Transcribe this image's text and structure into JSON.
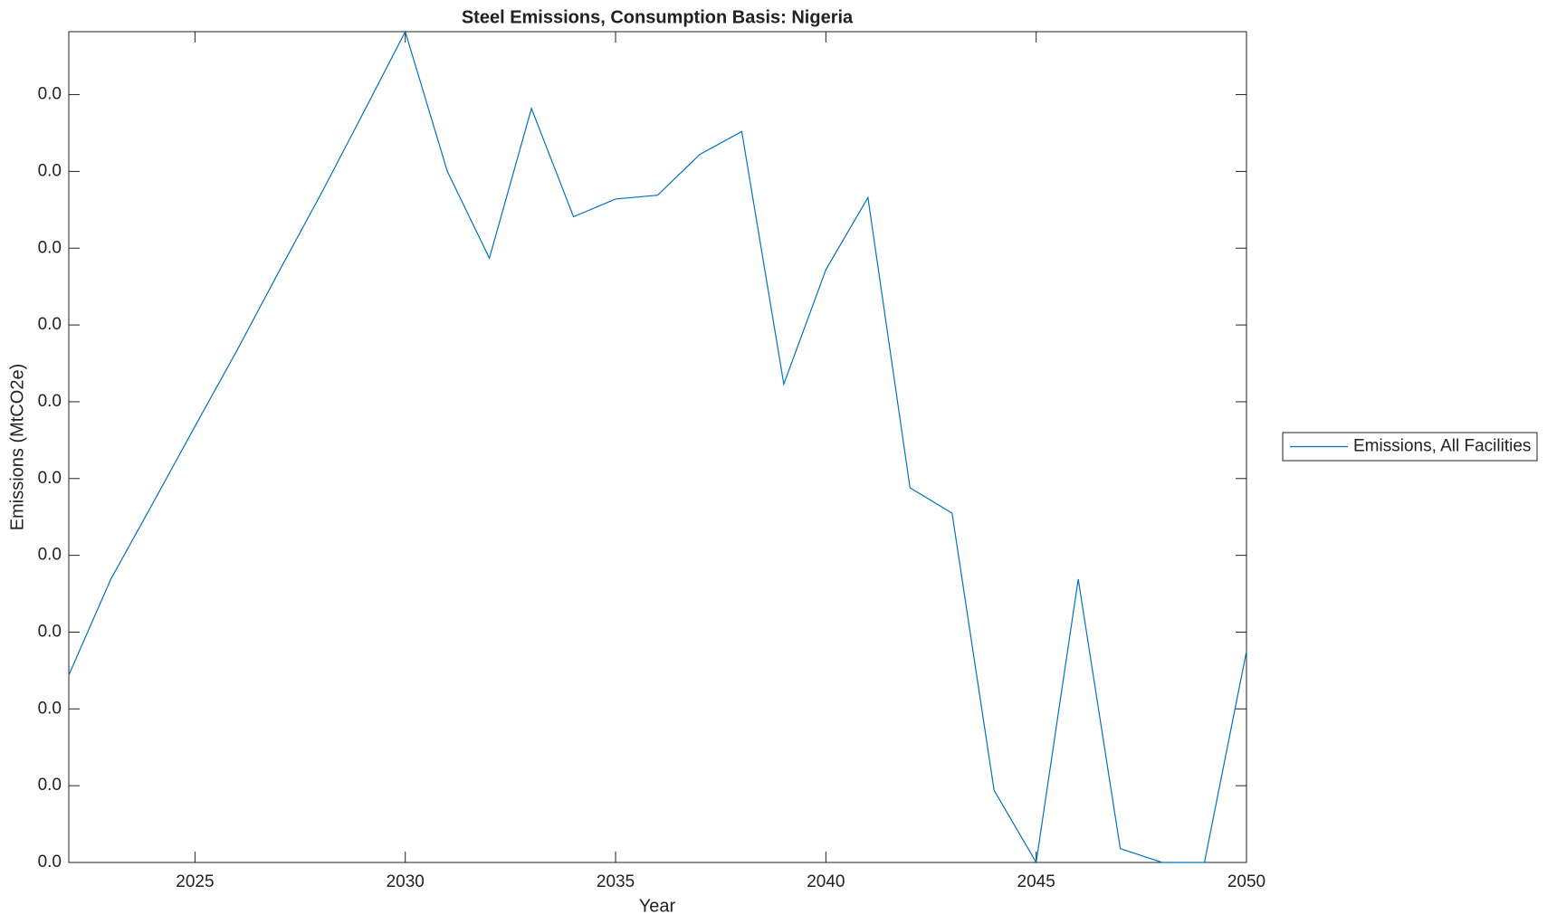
{
  "chart_data": {
    "type": "line",
    "title": "Steel Emissions, Consumption Basis: Nigeria",
    "xlabel": "Year",
    "ylabel": "Emissions (MtCO2e)",
    "x": [
      2022,
      2023,
      2024,
      2025,
      2026,
      2027,
      2028,
      2029,
      2030,
      2031,
      2032,
      2033,
      2034,
      2035,
      2036,
      2037,
      2038,
      2039,
      2040,
      2041,
      2042,
      2043,
      2044,
      2045,
      2046,
      2047,
      2048,
      2049,
      2050
    ],
    "series": [
      {
        "name": "Emissions, All Facilities",
        "color": "#0072bd",
        "values": [
          0.00244,
          0.00369,
          0.00468,
          0.00568,
          0.00667,
          0.0077,
          0.00871,
          0.00976,
          0.01082,
          0.009,
          0.00787,
          0.00982,
          0.00841,
          0.00864,
          0.00869,
          0.00922,
          0.00952,
          0.00623,
          0.00772,
          0.00866,
          0.00488,
          0.00455,
          0.00094,
          0,
          0.00369,
          0.00018,
          0,
          0,
          0.00275
        ]
      }
    ],
    "xlim": [
      2022,
      2050
    ],
    "xticks": [
      2025,
      2030,
      2035,
      2040,
      2045,
      2050
    ],
    "ylim": [
      0,
      0.01082
    ],
    "yticks": [
      {
        "value": 0,
        "label": "0.0"
      },
      {
        "value": 0.001,
        "label": "0.0"
      },
      {
        "value": 0.002,
        "label": "0.0"
      },
      {
        "value": 0.003,
        "label": "0.0"
      },
      {
        "value": 0.004,
        "label": "0.0"
      },
      {
        "value": 0.005,
        "label": "0.0"
      },
      {
        "value": 0.006,
        "label": "0.0"
      },
      {
        "value": 0.007,
        "label": "0.0"
      },
      {
        "value": 0.008,
        "label": "0.0"
      },
      {
        "value": 0.009,
        "label": "0.0"
      },
      {
        "value": 0.01,
        "label": "0.0"
      }
    ],
    "grid": false,
    "legend": "right"
  }
}
